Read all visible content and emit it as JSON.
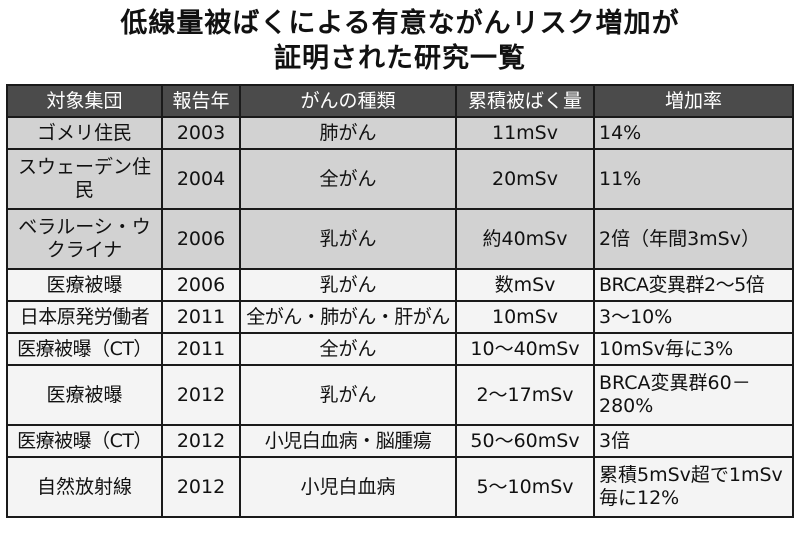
{
  "title": {
    "line1": "低線量被ばくによる有意ながんリスク増加が",
    "line2": "証明された研究一覧"
  },
  "table": {
    "headers": [
      "対象集団",
      "報告年",
      "がんの種類",
      "累積被ばく量",
      "増加率"
    ],
    "rows": [
      {
        "group": "ゴメリ住民",
        "year": "2003",
        "cancer": "肺がん",
        "dose": "11mSv",
        "rate": "14%"
      },
      {
        "group": "スウェーデン住民",
        "year": "2004",
        "cancer": "全がん",
        "dose": "20mSv",
        "rate": "11%"
      },
      {
        "group": "ベラルーシ・ウクライナ",
        "year": "2006",
        "cancer": "乳がん",
        "dose": "約40mSv",
        "rate": "2倍（年間3mSv）"
      },
      {
        "group": "医療被曝",
        "year": "2006",
        "cancer": "乳がん",
        "dose": "数mSv",
        "rate": "BRCA変異群2〜5倍"
      },
      {
        "group": "日本原発労働者",
        "year": "2011",
        "cancer": "全がん・肺がん・肝がん",
        "dose": "10mSv",
        "rate": "3〜10%"
      },
      {
        "group": "医療被曝（CT）",
        "year": "2011",
        "cancer": "全がん",
        "dose": "10〜40mSv",
        "rate": "10mSv毎に3%"
      },
      {
        "group": "医療被曝",
        "year": "2012",
        "cancer": "乳がん",
        "dose": "2〜17mSv",
        "rate": "BRCA変異群60－280%"
      },
      {
        "group": "医療被曝（CT）",
        "year": "2012",
        "cancer": "小児白血病・脳腫瘍",
        "dose": "50〜60mSv",
        "rate": "3倍"
      },
      {
        "group": "自然放射線",
        "year": "2012",
        "cancer": "小児白血病",
        "dose": "5〜10mSv",
        "rate": "累積5mSv超で1mSv毎に12%"
      }
    ]
  },
  "colors": {
    "header_bg": "#4b4b4b",
    "header_text": "#ffffff",
    "shaded_row": "#d2d2d2",
    "plain_row": "#f4f4f4",
    "border": "#1a1a1a"
  }
}
